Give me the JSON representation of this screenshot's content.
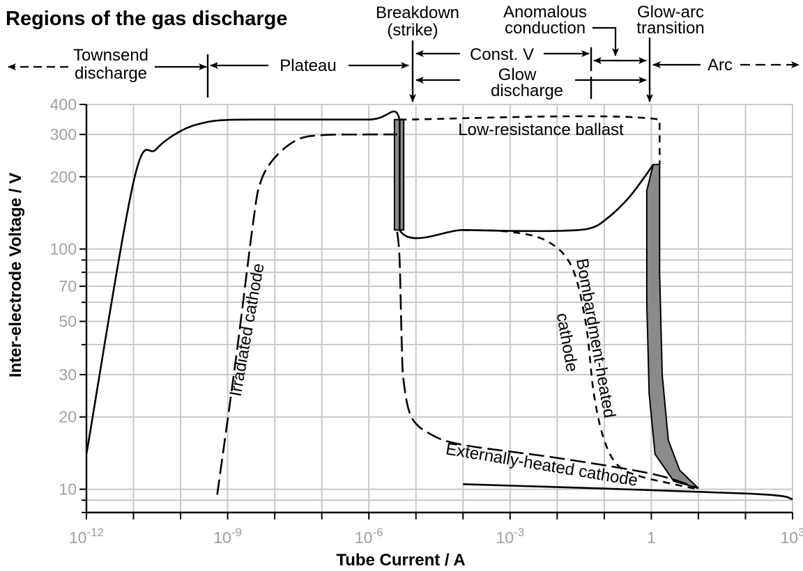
{
  "chart_data": {
    "type": "line",
    "title": "Regions of the gas discharge",
    "xlabel": "Tube Current / A",
    "ylabel": "Inter-electrode Voltage / V",
    "xscale": "log",
    "yscale": "log",
    "xlim": [
      1e-12,
      1000
    ],
    "ylim": [
      8,
      400
    ],
    "x_ticks": [
      {
        "value": 1e-12,
        "base": "10",
        "exp": "-12"
      },
      {
        "value": 1e-09,
        "base": "10",
        "exp": "-9"
      },
      {
        "value": 1e-06,
        "base": "10",
        "exp": "-6"
      },
      {
        "value": 0.001,
        "base": "10",
        "exp": "-3"
      },
      {
        "value": 1,
        "base": "1",
        "exp": ""
      },
      {
        "value": 1000,
        "base": "10",
        "exp": "3"
      }
    ],
    "y_ticks": [
      {
        "value": 400,
        "label": "400"
      },
      {
        "value": 300,
        "label": "300"
      },
      {
        "value": 200,
        "label": "200"
      },
      {
        "value": 100,
        "label": "100"
      },
      {
        "value": 70,
        "label": "70"
      },
      {
        "value": 50,
        "label": "50"
      },
      {
        "value": 30,
        "label": "30"
      },
      {
        "value": 20,
        "label": "20"
      },
      {
        "value": 10,
        "label": "10"
      }
    ],
    "grid": true,
    "colors": {
      "line": "#000000",
      "grid": "#c8c8c8",
      "tick_label": "#a0a0a0",
      "shade": "#8a8a8a"
    },
    "series": [
      {
        "name": "",
        "style": "solid",
        "points": [
          [
            1e-12,
            14
          ],
          [
            1e-11,
            190
          ],
          [
            3e-11,
            260
          ],
          [
            1e-10,
            310
          ],
          [
            3e-10,
            335
          ],
          [
            1e-09,
            345
          ],
          [
            1e-08,
            346
          ],
          [
            1e-06,
            346
          ],
          [
            4.5e-06,
            346
          ],
          [
            4.5e-06,
            120
          ],
          [
            0.0001,
            120
          ],
          [
            0.001,
            119
          ],
          [
            0.01,
            119
          ],
          [
            0.05,
            122
          ],
          [
            0.12,
            135
          ],
          [
            0.3,
            160
          ],
          [
            0.6,
            190
          ],
          [
            1.1,
            225
          ]
        ]
      },
      {
        "name": "Irradiated cathode",
        "style": "long-dash",
        "points": [
          [
            6e-10,
            9.5
          ],
          [
            1.5e-09,
            35
          ],
          [
            3.5e-09,
            130
          ],
          [
            5e-09,
            190
          ],
          [
            1e-08,
            240
          ],
          [
            3e-08,
            285
          ],
          [
            1e-07,
            298
          ],
          [
            1e-06,
            300
          ],
          [
            4e-06,
            300
          ]
        ]
      },
      {
        "name": "Bombardment-heated cathode",
        "style": "dash",
        "points": [
          [
            0.0001,
            120
          ],
          [
            0.001,
            118
          ],
          [
            0.006,
            108
          ],
          [
            0.02,
            85
          ],
          [
            0.04,
            50
          ],
          [
            0.06,
            25
          ],
          [
            0.1,
            16
          ],
          [
            0.2,
            12.5
          ],
          [
            0.6,
            11.3
          ],
          [
            3,
            10.5
          ],
          [
            10,
            10
          ]
        ]
      },
      {
        "name": "Externally-heated cathode",
        "style": "long-dash",
        "points": [
          [
            4e-06,
            118
          ],
          [
            4.5e-06,
            90
          ],
          [
            5e-06,
            40
          ],
          [
            5.5e-06,
            28
          ],
          [
            8e-06,
            20
          ],
          [
            2e-05,
            17
          ],
          [
            0.0001,
            15.3
          ],
          [
            0.01,
            13.5
          ],
          [
            1,
            11.6
          ],
          [
            10,
            10.1
          ]
        ]
      },
      {
        "name": "",
        "style": "dash",
        "points": [
          [
            4.5e-06,
            346
          ],
          [
            1.5,
            346
          ],
          [
            1.5,
            225
          ]
        ]
      },
      {
        "name": "",
        "style": "solid",
        "points": [
          [
            0.0001,
            10.5
          ],
          [
            100,
            9.6
          ],
          [
            1000,
            9.1
          ]
        ]
      }
    ],
    "shaded_regions": [
      {
        "name": "",
        "points": [
          [
            3.5e-06,
            346
          ],
          [
            5.5e-06,
            346
          ],
          [
            5.5e-06,
            120
          ],
          [
            3.5e-06,
            120
          ]
        ]
      },
      {
        "name": "",
        "points": [
          [
            1.1,
            225
          ],
          [
            1.5,
            225
          ],
          [
            1.5,
            80
          ],
          [
            1.7,
            30
          ],
          [
            2.3,
            16
          ],
          [
            4,
            12
          ],
          [
            10,
            10.1
          ],
          [
            3,
            10.8
          ],
          [
            1.2,
            14
          ],
          [
            0.9,
            25
          ],
          [
            0.8,
            60
          ],
          [
            0.8,
            120
          ],
          [
            0.8,
            175
          ]
        ]
      }
    ],
    "annotations": [
      {
        "key": "irradiated",
        "text": "Irradiated cathode"
      },
      {
        "key": "bombardment_1",
        "text": "Bombardment-heated"
      },
      {
        "key": "bombardment_2",
        "text": "cathode"
      },
      {
        "key": "external",
        "text": "Externally-heated cathode"
      },
      {
        "key": "ballast",
        "text": "Low-resistance ballast"
      }
    ],
    "regions": [
      {
        "key": "townsend_1",
        "text": "Townsend"
      },
      {
        "key": "townsend_2",
        "text": "discharge"
      },
      {
        "key": "plateau",
        "text": "Plateau"
      },
      {
        "key": "breakdown_1",
        "text": "Breakdown"
      },
      {
        "key": "breakdown_2",
        "text": "(strike)"
      },
      {
        "key": "anomalous_1",
        "text": "Anomalous"
      },
      {
        "key": "anomalous_2",
        "text": "conduction"
      },
      {
        "key": "glowarc_1",
        "text": "Glow-arc"
      },
      {
        "key": "glowarc_2",
        "text": "transition"
      },
      {
        "key": "constv",
        "text": "Const. V"
      },
      {
        "key": "glow_1",
        "text": "Glow"
      },
      {
        "key": "glow_2",
        "text": "discharge"
      },
      {
        "key": "arc",
        "text": "Arc"
      }
    ]
  }
}
